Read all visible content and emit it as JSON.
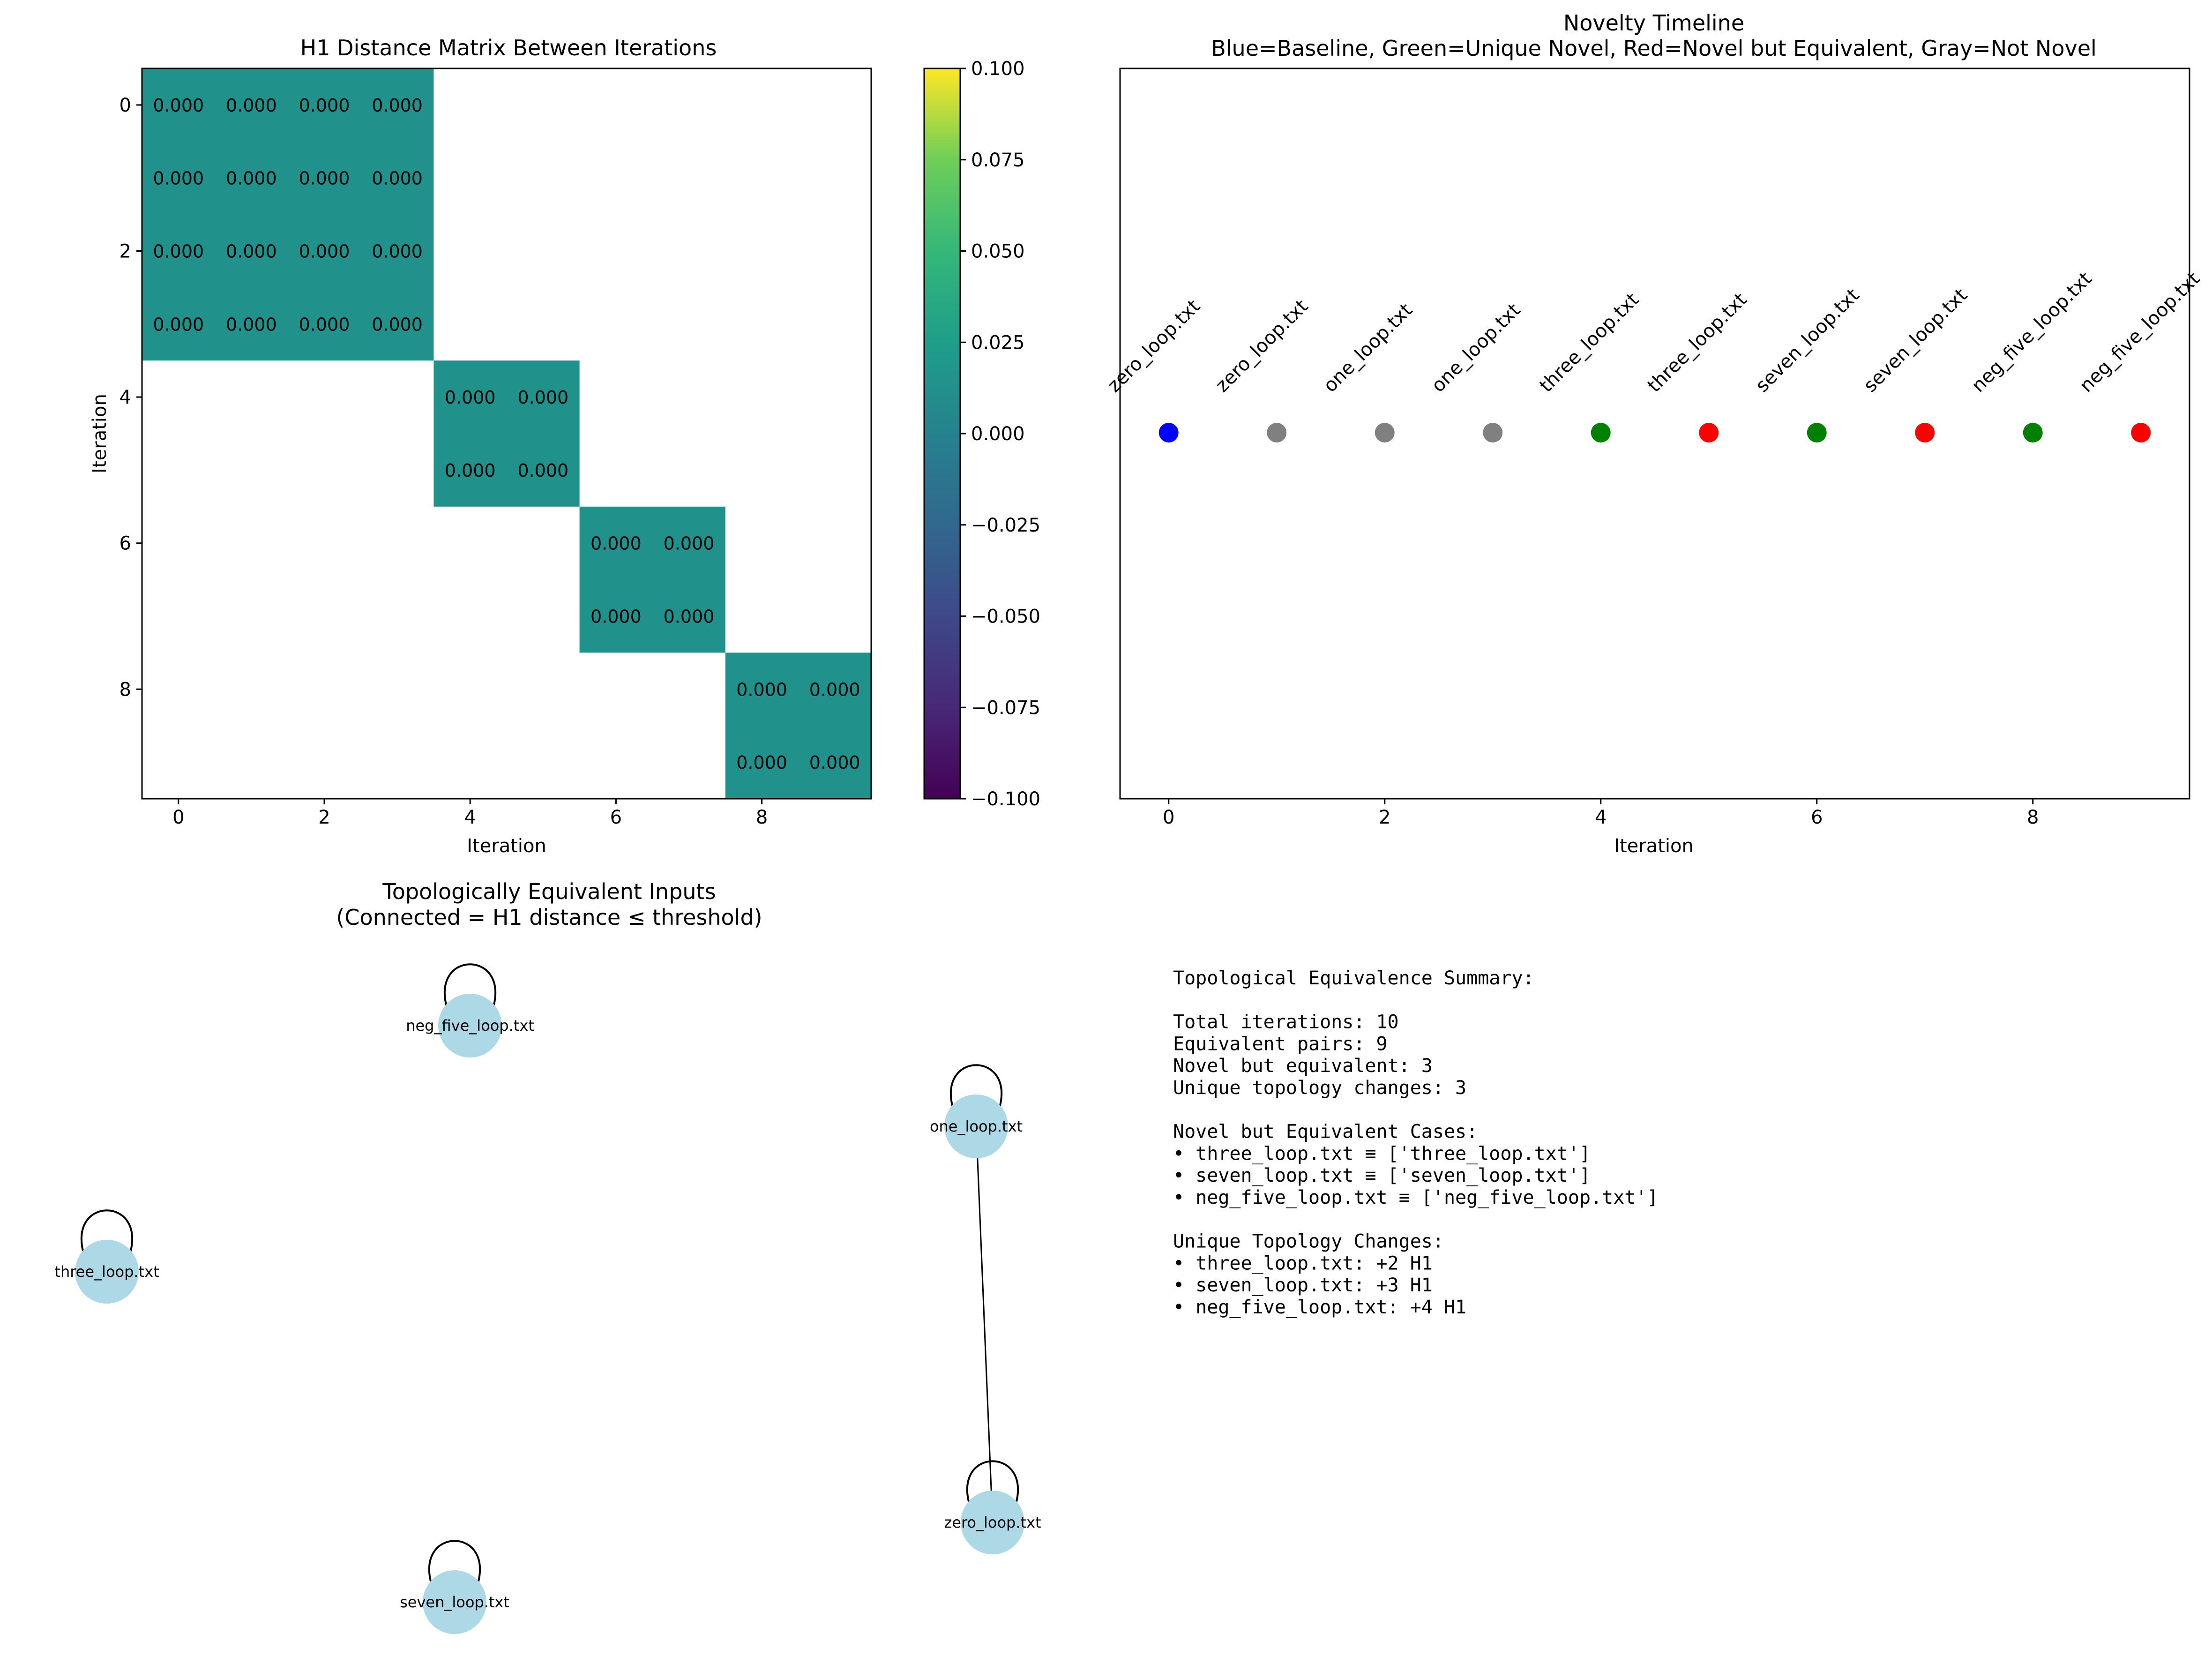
{
  "chart_data": [
    {
      "type": "heatmap",
      "title": "H1 Distance Matrix Between Iterations",
      "xlabel": "Iteration",
      "ylabel": "Iteration",
      "x_ticks": [
        "0",
        "2",
        "4",
        "6",
        "8"
      ],
      "y_ticks": [
        "0",
        "2",
        "4",
        "6",
        "8"
      ],
      "colormap": "viridis",
      "colorbar_ticks": [
        "0.100",
        "0.075",
        "0.050",
        "0.025",
        "0.000",
        "−0.025",
        "−0.050",
        "−0.075",
        "−0.100"
      ],
      "colorbar_range": [
        -0.1,
        0.1
      ],
      "cell_color": "#21918c",
      "blocks": [
        {
          "start": 0,
          "end": 3
        },
        {
          "start": 4,
          "end": 5
        },
        {
          "start": 6,
          "end": 7
        },
        {
          "start": 8,
          "end": 9
        }
      ],
      "cell_label": "0.000",
      "cells": [
        {
          "row": 0,
          "col": 0,
          "value": 0.0
        },
        {
          "row": 0,
          "col": 1,
          "value": 0.0
        },
        {
          "row": 0,
          "col": 2,
          "value": 0.0
        },
        {
          "row": 0,
          "col": 3,
          "value": 0.0
        },
        {
          "row": 1,
          "col": 0,
          "value": 0.0
        },
        {
          "row": 1,
          "col": 1,
          "value": 0.0
        },
        {
          "row": 1,
          "col": 2,
          "value": 0.0
        },
        {
          "row": 1,
          "col": 3,
          "value": 0.0
        },
        {
          "row": 2,
          "col": 0,
          "value": 0.0
        },
        {
          "row": 2,
          "col": 1,
          "value": 0.0
        },
        {
          "row": 2,
          "col": 2,
          "value": 0.0
        },
        {
          "row": 2,
          "col": 3,
          "value": 0.0
        },
        {
          "row": 3,
          "col": 0,
          "value": 0.0
        },
        {
          "row": 3,
          "col": 1,
          "value": 0.0
        },
        {
          "row": 3,
          "col": 2,
          "value": 0.0
        },
        {
          "row": 3,
          "col": 3,
          "value": 0.0
        },
        {
          "row": 4,
          "col": 4,
          "value": 0.0
        },
        {
          "row": 4,
          "col": 5,
          "value": 0.0
        },
        {
          "row": 5,
          "col": 4,
          "value": 0.0
        },
        {
          "row": 5,
          "col": 5,
          "value": 0.0
        },
        {
          "row": 6,
          "col": 6,
          "value": 0.0
        },
        {
          "row": 6,
          "col": 7,
          "value": 0.0
        },
        {
          "row": 7,
          "col": 6,
          "value": 0.0
        },
        {
          "row": 7,
          "col": 7,
          "value": 0.0
        },
        {
          "row": 8,
          "col": 8,
          "value": 0.0
        },
        {
          "row": 8,
          "col": 9,
          "value": 0.0
        },
        {
          "row": 9,
          "col": 8,
          "value": 0.0
        },
        {
          "row": 9,
          "col": 9,
          "value": 0.0
        }
      ]
    },
    {
      "type": "scatter",
      "title": "Novelty Timeline",
      "subtitle": "Blue=Baseline, Green=Unique Novel, Red=Novel but Equivalent, Gray=Not Novel",
      "xlabel": "Iteration",
      "x_ticks": [
        "0",
        "2",
        "4",
        "6",
        "8"
      ],
      "xlim": [
        -0.45,
        9.45
      ],
      "y_ticks_visible": false,
      "colors": {
        "baseline": "#0000ff",
        "unique": "#008000",
        "equivalent": "#ff0000",
        "not_novel": "#808080"
      },
      "points": [
        {
          "x": 0,
          "label": "zero_loop.txt",
          "status": "baseline"
        },
        {
          "x": 1,
          "label": "zero_loop.txt",
          "status": "not_novel"
        },
        {
          "x": 2,
          "label": "one_loop.txt",
          "status": "not_novel"
        },
        {
          "x": 3,
          "label": "one_loop.txt",
          "status": "not_novel"
        },
        {
          "x": 4,
          "label": "three_loop.txt",
          "status": "unique"
        },
        {
          "x": 5,
          "label": "three_loop.txt",
          "status": "equivalent"
        },
        {
          "x": 6,
          "label": "seven_loop.txt",
          "status": "unique"
        },
        {
          "x": 7,
          "label": "seven_loop.txt",
          "status": "equivalent"
        },
        {
          "x": 8,
          "label": "neg_five_loop.txt",
          "status": "unique"
        },
        {
          "x": 9,
          "label": "neg_five_loop.txt",
          "status": "equivalent"
        }
      ]
    }
  ],
  "graph": {
    "title": "Topologically Equivalent Inputs",
    "subtitle": "(Connected = H1 distance ≤ threshold)",
    "node_color": "#add8e6",
    "nodes": [
      {
        "id": "neg_five_loop.txt",
        "label": "neg_five_loop.txt",
        "self_loop": true
      },
      {
        "id": "one_loop.txt",
        "label": "one_loop.txt",
        "self_loop": true
      },
      {
        "id": "three_loop.txt",
        "label": "three_loop.txt",
        "self_loop": true
      },
      {
        "id": "zero_loop.txt",
        "label": "zero_loop.txt",
        "self_loop": true
      },
      {
        "id": "seven_loop.txt",
        "label": "seven_loop.txt",
        "self_loop": true
      }
    ],
    "edges": [
      {
        "source": "one_loop.txt",
        "target": "zero_loop.txt"
      }
    ]
  },
  "summary": {
    "lines": [
      "Topological Equivalence Summary:",
      "",
      "Total iterations: 10",
      "Equivalent pairs: 9",
      "Novel but equivalent: 3",
      "Unique topology changes: 3",
      "",
      "Novel but Equivalent Cases:",
      "• three_loop.txt ≡ ['three_loop.txt']",
      "• seven_loop.txt ≡ ['seven_loop.txt']",
      "• neg_five_loop.txt ≡ ['neg_five_loop.txt']",
      "",
      "Unique Topology Changes:",
      "• three_loop.txt: +2 H1",
      "• seven_loop.txt: +3 H1",
      "• neg_five_loop.txt: +4 H1"
    ]
  }
}
